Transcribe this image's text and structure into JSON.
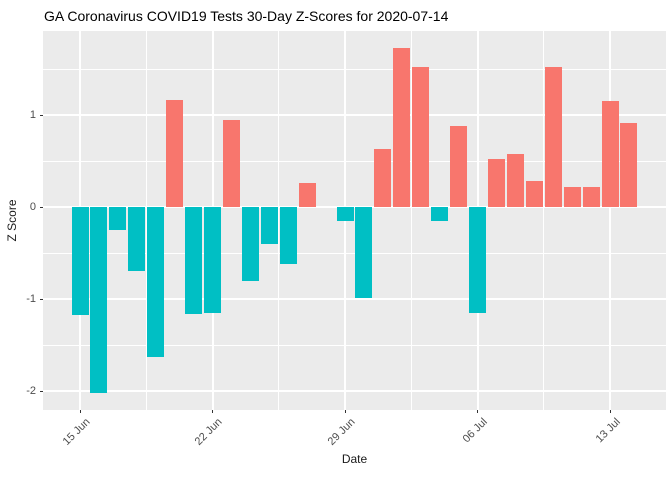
{
  "title": "GA Coronavirus COVID19 Tests 30-Day Z-Scores for 2020-07-14",
  "chart_data": {
    "type": "bar",
    "title": "GA Coronavirus COVID19 Tests 30-Day Z-Scores for 2020-07-14",
    "xlabel": "Date",
    "ylabel": "Z Score",
    "x": [
      "2020-06-15",
      "2020-06-16",
      "2020-06-17",
      "2020-06-18",
      "2020-06-19",
      "2020-06-20",
      "2020-06-21",
      "2020-06-22",
      "2020-06-23",
      "2020-06-24",
      "2020-06-25",
      "2020-06-26",
      "2020-06-27",
      "2020-06-28",
      "2020-06-29",
      "2020-06-30",
      "2020-07-01",
      "2020-07-02",
      "2020-07-03",
      "2020-07-04",
      "2020-07-05",
      "2020-07-06",
      "2020-07-07",
      "2020-07-08",
      "2020-07-09",
      "2020-07-10",
      "2020-07-11",
      "2020-07-12",
      "2020-07-13",
      "2020-07-14"
    ],
    "values": [
      -1.17,
      -2.02,
      -0.25,
      -0.69,
      -1.63,
      1.17,
      -1.16,
      -1.15,
      0.95,
      -0.8,
      -0.4,
      -0.62,
      0.26,
      0,
      -0.15,
      -0.98,
      0.63,
      1.73,
      1.53,
      -0.15,
      0.89,
      -1.15,
      0.53,
      0.58,
      0.29,
      1.53,
      0.22,
      0.22,
      1.16,
      0.92
    ],
    "positive_color": "#F8766D",
    "negative_color": "#00BFC4",
    "x_tick_labels": [
      "15 Jun",
      "22 Jun",
      "29 Jun",
      "06 Jul",
      "13 Jul"
    ],
    "x_tick_day_offsets": [
      0,
      7,
      14,
      21,
      28
    ],
    "x_minor_day_offsets": [
      3.5,
      10.5,
      17.5,
      24.5
    ],
    "y_ticks": [
      1,
      0,
      -1,
      -2
    ],
    "y_minor_ticks": [
      1.5,
      0.5,
      -0.5,
      -1.5
    ],
    "ylim": [
      -2.2,
      1.92
    ],
    "grid": "on",
    "legend": "none",
    "panel_bg": "#EBEBEB",
    "grid_color": "#FFFFFF",
    "tick_label_color": "#4D4D4D",
    "axis_title_color": "#1A1A1A",
    "title_color": "#000000"
  }
}
